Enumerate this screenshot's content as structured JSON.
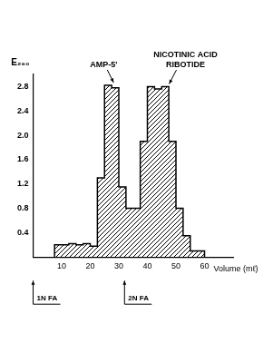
{
  "chart_data": {
    "type": "histogram",
    "bins": [
      7.5,
      10,
      12.5,
      15,
      17.5,
      20,
      22.5,
      25,
      27.5,
      30,
      32.5,
      35,
      37.5,
      40,
      42.5,
      45,
      47.5,
      50,
      52.5,
      55,
      57.5,
      60
    ],
    "values": [
      0.2,
      0.2,
      0.2,
      0.22,
      0.2,
      0.22,
      0.18,
      1.3,
      2.82,
      2.78,
      1.15,
      0.8,
      0.8,
      1.9,
      2.8,
      2.76,
      2.8,
      1.9,
      0.8,
      0.35,
      0.1
    ],
    "color": "#000000",
    "x_label": "Volume (mℓ)",
    "y_label": "E₂₆₀",
    "xlim": [
      0,
      70
    ],
    "xticks": [
      10,
      20,
      30,
      40,
      50,
      60
    ],
    "ylim": [
      0,
      3.0
    ],
    "yticks": [
      0.4,
      0.8,
      1.2,
      1.6,
      {
        "value": 2.0,
        "label": "2.0"
      },
      2.4,
      2.8
    ],
    "grid": false,
    "annotations": [
      {
        "text": "AMP-5'",
        "x": 28.5,
        "y": 2.82
      },
      {
        "text": "NICOTINIC ACID RIBOTIDE",
        "x": 47,
        "y": 2.8
      }
    ],
    "markers": [
      {
        "label": "1N FA",
        "x": 0
      },
      {
        "label": "2N FA",
        "x": 32
      }
    ]
  }
}
